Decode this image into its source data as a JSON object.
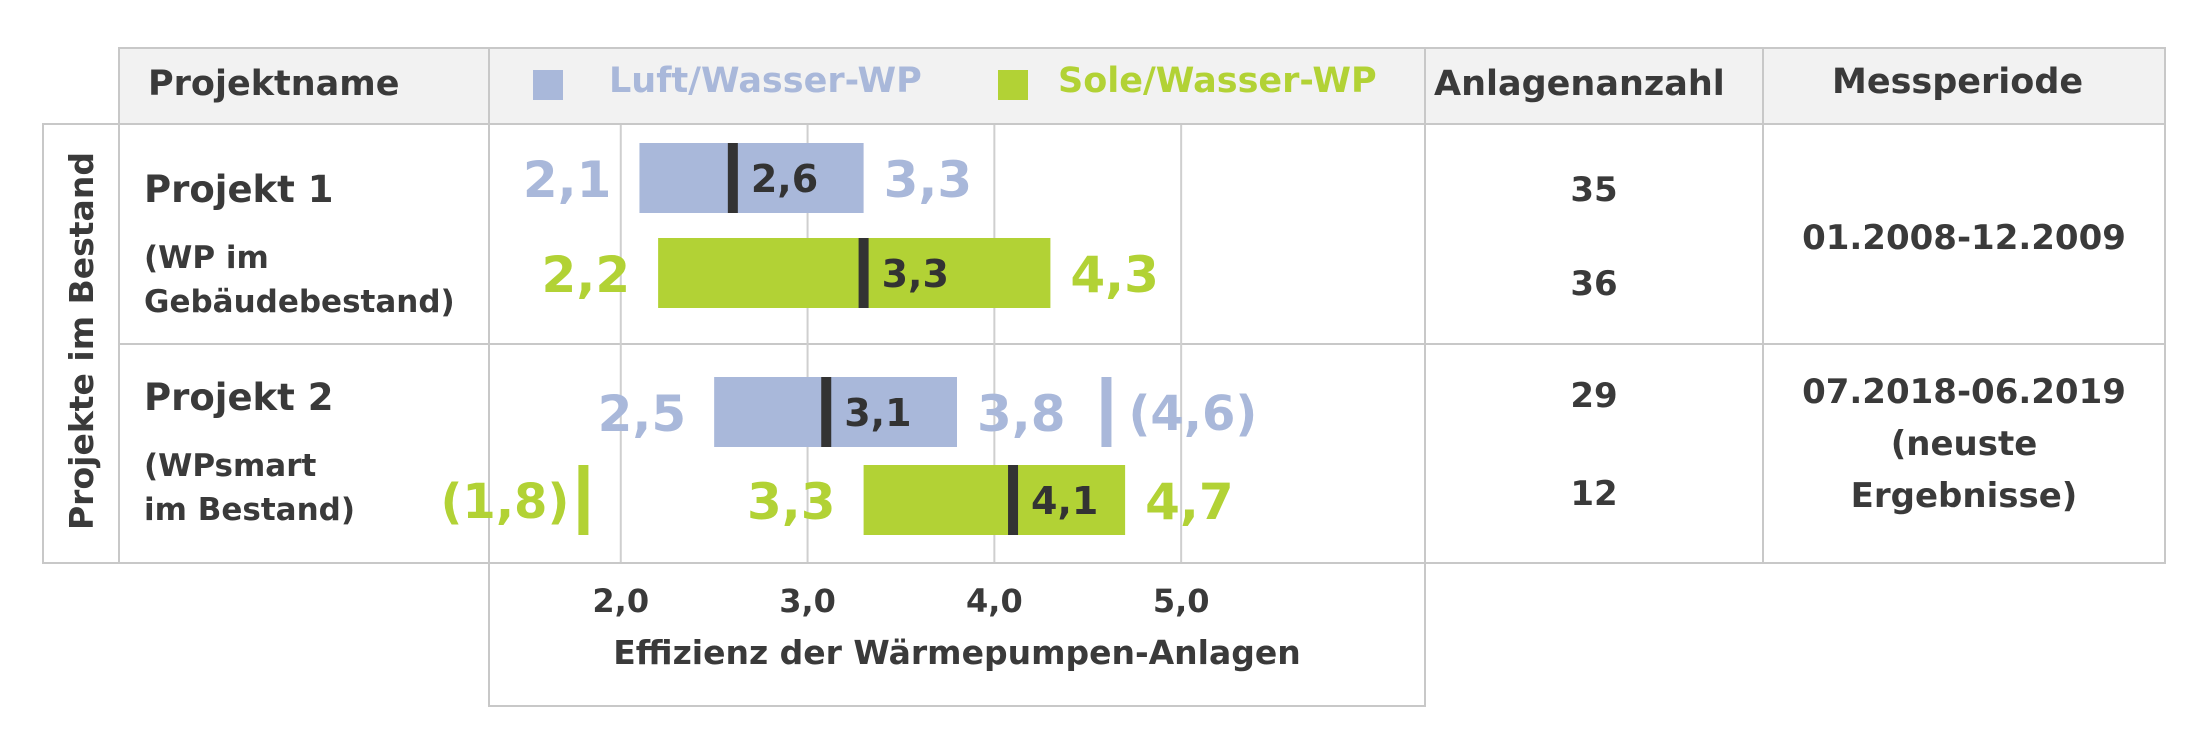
{
  "header": {
    "project_col": "Projektname",
    "count_col": "Anlagenanzahl",
    "period_col": "Messperiode"
  },
  "legend": [
    {
      "label": "Luft/Wasser-WP",
      "color": "#a9b8da"
    },
    {
      "label": "Sole/Wasser-WP",
      "color": "#b2d235"
    }
  ],
  "side_label": "Projekte im Bestand",
  "projects": [
    {
      "name": "Projekt 1",
      "sub": "(WP im\nGebäudebestand)",
      "counts": [
        "35",
        "36"
      ],
      "period": "01.2008-12.2009"
    },
    {
      "name": "Projekt 2",
      "sub": "(WPsmart\nim Bestand)",
      "counts": [
        "29",
        "12"
      ],
      "period": "07.2018-06.2019\n(neuste\nErgebnisse)"
    }
  ],
  "chart_data": {
    "type": "bar",
    "orientation": "horizontal-range",
    "xlabel": "Effizienz der Wärmepumpen-Anlagen",
    "xticks": [
      "2,0",
      "3,0",
      "4,0",
      "5,0"
    ],
    "xlim": [
      1.3,
      6.3
    ],
    "grid": true,
    "series": [
      {
        "name": "Luft/Wasser-WP",
        "color": "#a9b8da"
      },
      {
        "name": "Sole/Wasser-WP",
        "color": "#b2d235"
      }
    ],
    "rows": [
      {
        "project": "Projekt 1",
        "series": "Luft/Wasser-WP",
        "min": 2.1,
        "median": 2.6,
        "max": 3.3,
        "min_label": "2,1",
        "median_label": "2,6",
        "max_label": "3,3"
      },
      {
        "project": "Projekt 1",
        "series": "Sole/Wasser-WP",
        "min": 2.2,
        "median": 3.3,
        "max": 4.3,
        "min_label": "2,2",
        "median_label": "3,3",
        "max_label": "4,3"
      },
      {
        "project": "Projekt 2",
        "series": "Luft/Wasser-WP",
        "min": 2.5,
        "median": 3.1,
        "max": 3.8,
        "min_label": "2,5",
        "median_label": "3,1",
        "max_label": "3,8",
        "outlier": 4.6,
        "outlier_label": "(4,6)"
      },
      {
        "project": "Projekt 2",
        "series": "Sole/Wasser-WP",
        "min": 3.3,
        "median": 4.1,
        "max": 4.7,
        "min_label": "3,3",
        "median_label": "4,1",
        "max_label": "4,7",
        "outlier": 1.8,
        "outlier_label": "(1,8)"
      }
    ]
  }
}
